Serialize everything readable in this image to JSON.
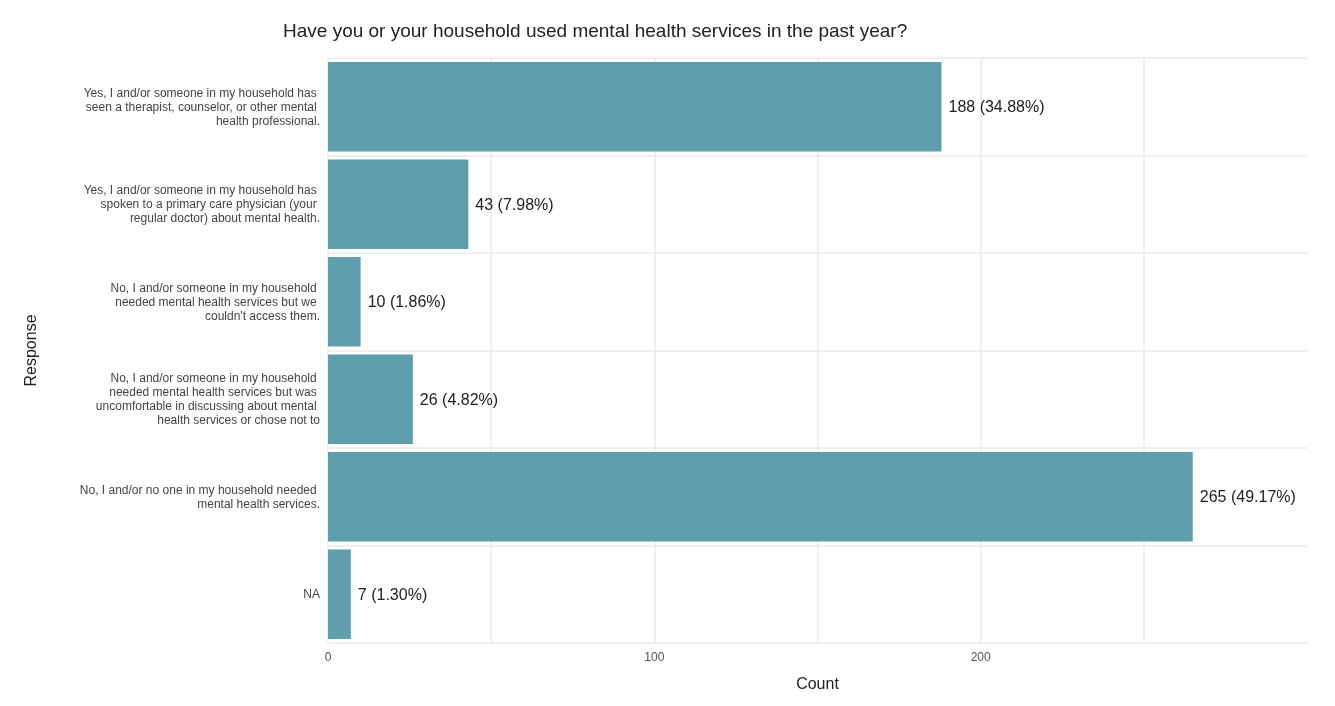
{
  "chart_data": {
    "type": "bar",
    "orientation": "horizontal",
    "title": "Have you or your household used mental health services in the past year?",
    "xlabel": "Count",
    "ylabel": "Response",
    "categories": [
      "Yes, I and/or someone in my household has seen a therapist, counselor, or other mental health professional.",
      "Yes, I and/or someone in my household has spoken to a primary care physician (your regular doctor) about mental health.",
      "No, I and/or someone in my household needed mental health services but we couldn't access them.",
      "No, I and/or someone in my household needed mental health services but was uncomfortable in discussing about mental health services or chose not to",
      "No, I and/or no one in my household needed mental health services.",
      "NA"
    ],
    "values": [
      188,
      43,
      10,
      26,
      265,
      7
    ],
    "value_labels": [
      "188 (34.88%)",
      "43 (7.98%)",
      "10 (1.86%)",
      "26 (4.82%)",
      "265 (49.17%)",
      "7 (1.30%)"
    ],
    "color": "#5f9ead",
    "xlim": [
      0,
      300
    ],
    "xticks": [
      0,
      {
        "value": 50,
        "label": null
      },
      100,
      {
        "value": 150,
        "label": null
      },
      200,
      {
        "value": 250,
        "label": null
      }
    ],
    "grid": true
  }
}
